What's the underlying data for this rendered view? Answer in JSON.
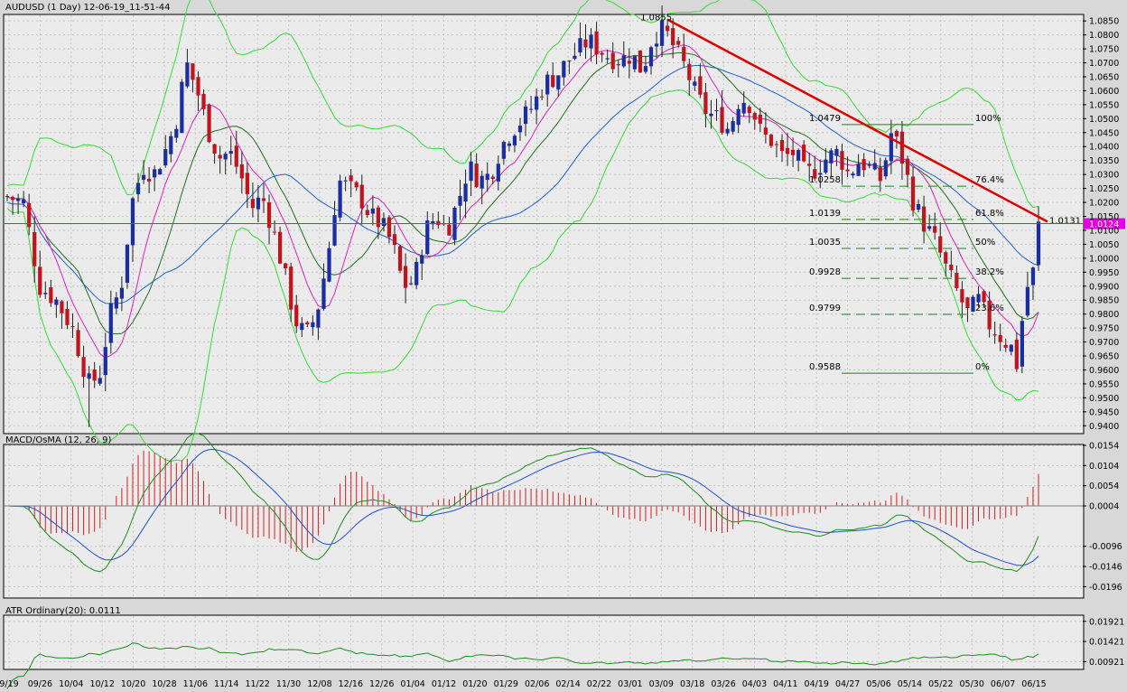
{
  "panels": {
    "main": {
      "title": "AUDUSD (1 Day) 12-06-19_11-51-44"
    },
    "macd": {
      "title": "MACD/OsMA (12, 26, 9)"
    },
    "atr": {
      "title": "ATR Ordinary(20): 0.0111"
    }
  },
  "chart_data": [
    {
      "type": "candlestick",
      "title": "AUDUSD (1 Day) 12-06-19_11-51-44",
      "y_ticks": [
        1.085,
        1.08,
        1.075,
        1.07,
        1.065,
        1.06,
        1.055,
        1.05,
        1.045,
        1.04,
        1.035,
        1.03,
        1.025,
        1.02,
        1.015,
        1.01,
        1.005,
        1.0,
        0.995,
        0.99,
        0.985,
        0.98,
        0.975,
        0.97,
        0.965,
        0.96,
        0.955,
        0.95,
        0.945,
        0.94
      ],
      "ylim": [
        0.9375,
        1.087
      ],
      "x_labels": [
        "9/19",
        "09/26",
        "10/04",
        "10/12",
        "10/20",
        "10/28",
        "11/06",
        "11/14",
        "11/22",
        "11/30",
        "12/08",
        "12/16",
        "12/26",
        "01/04",
        "01/12",
        "01/20",
        "01/29",
        "02/06",
        "02/14",
        "02/22",
        "03/01",
        "03/09",
        "03/18",
        "03/26",
        "04/03",
        "04/11",
        "04/19",
        "04/27",
        "05/06",
        "05/14",
        "05/22",
        "05/30",
        "06/07",
        "06/15"
      ],
      "current_price": "1.0124",
      "trendline": {
        "start_label": "1.0855",
        "end_label": "1.0131",
        "color": "#e00000"
      },
      "fibonacci": [
        {
          "level": "100%",
          "price": "1.0479"
        },
        {
          "level": "76.4%",
          "price": "1.0258"
        },
        {
          "level": "61.8%",
          "price": "1.0139"
        },
        {
          "level": "50%",
          "price": "1.0035"
        },
        {
          "level": "38.2%",
          "price": "0.9928"
        },
        {
          "level": "23.6%",
          "price": "0.9799"
        },
        {
          "level": "0%",
          "price": "0.9588"
        }
      ],
      "series": [
        {
          "name": "AUDUSD daily candles",
          "color_up": "#1a2ea0",
          "color_down": "#c0141e"
        },
        {
          "name": "Bollinger bands",
          "color": "#33dd33"
        },
        {
          "name": "MA blue",
          "color": "#2060d0"
        },
        {
          "name": "MA magenta",
          "color": "#e020c0"
        },
        {
          "name": "MA green",
          "color": "#1e6e1e"
        }
      ],
      "key_points": {
        "low_oct": 0.9395,
        "high_oct": 1.075,
        "low_nov": 0.966,
        "high_feb": 1.0855,
        "high_apr": 1.0479,
        "low_may": 0.9588,
        "last": 1.0131
      }
    },
    {
      "type": "bar",
      "title": "MACD/OsMA (12, 26, 9)",
      "y_ticks": [
        "0.0154",
        "0.0104",
        "0.0054",
        "0.0004",
        "-0.0096",
        "-0.0146",
        "-0.0196"
      ],
      "ylim": [
        -0.0222,
        0.0154
      ]
    },
    {
      "type": "line",
      "title": "ATR Ordinary(20): 0.0111",
      "y_ticks": [
        "0.01921",
        "0.01421",
        "0.00921"
      ],
      "ylim": [
        0.0075,
        0.0205
      ]
    }
  ]
}
